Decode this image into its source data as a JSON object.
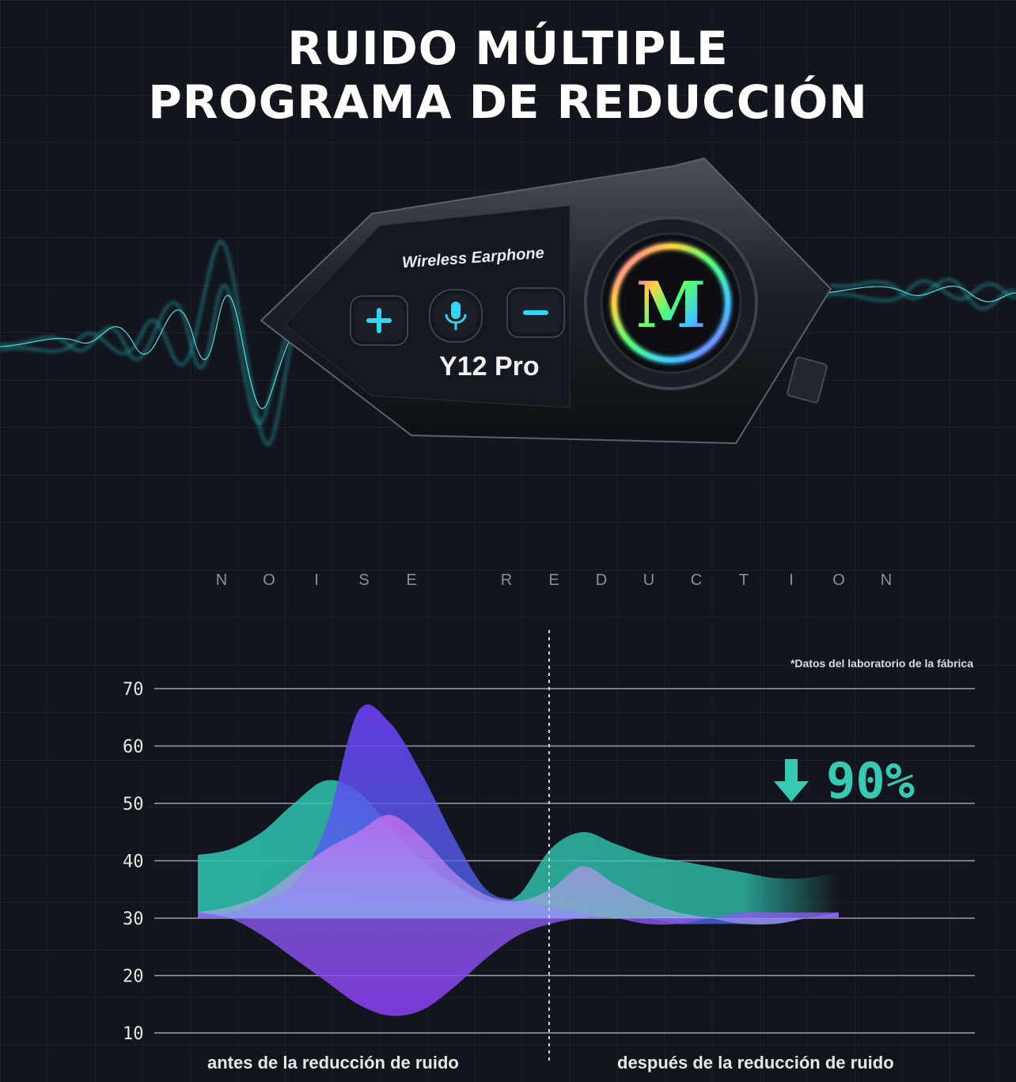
{
  "title": {
    "line1": "RUIDO MÚLTIPLE",
    "line2": "PROGRAMA DE REDUCCIÓN"
  },
  "device": {
    "label": "Wireless Earphone",
    "model": "12 Pro",
    "model_mark": "Y",
    "logo_letter": "M",
    "buttons": [
      "plus-icon",
      "microphone-icon",
      "minus-icon"
    ],
    "accent": "#33d6f2"
  },
  "noise_heading": [
    "N",
    "O",
    "I",
    "S",
    "E",
    "",
    "R",
    "E",
    "D",
    "U",
    "C",
    "T",
    "I",
    "O",
    "N"
  ],
  "footnote": "*Datos del laboratorio de la fábrica",
  "reduction": {
    "value": "90%",
    "icon": "arrow-down-icon",
    "color": "#36c9b4"
  },
  "captions": {
    "before": "antes de la reducción de ruido",
    "after": "después de la reducción de ruido"
  },
  "chart_data": {
    "type": "area",
    "title": "",
    "xlabel": "",
    "ylabel": "",
    "ylim": [
      10,
      70
    ],
    "yticks": [
      "70",
      "60",
      "50",
      "40",
      "30",
      "20",
      "10"
    ],
    "grid": true,
    "divider": "dashed vertical line between before and after",
    "x": [
      0,
      5,
      10,
      15,
      20,
      25,
      30,
      35,
      40,
      45,
      50,
      55,
      60,
      65,
      70,
      75,
      80,
      85,
      90,
      95,
      100
    ],
    "series": [
      {
        "color": "#2fc3b0",
        "values": [
          41,
          42,
          45,
          50,
          54,
          52,
          46,
          40,
          36,
          33,
          34,
          42,
          45,
          43,
          41,
          40,
          39,
          38,
          37,
          37,
          38
        ]
      },
      {
        "color": "#6a3df0",
        "values": [
          31,
          31,
          33,
          36,
          46,
          66,
          64,
          55,
          44,
          35,
          33,
          32,
          31,
          30,
          30,
          29,
          29,
          29,
          29,
          30,
          31
        ]
      },
      {
        "color": "#c46cf2",
        "values": [
          31,
          32,
          34,
          38,
          42,
          45,
          48,
          44,
          38,
          34,
          33,
          35,
          39,
          36,
          33,
          31,
          30,
          29,
          29,
          30,
          31
        ]
      },
      {
        "color": "#8a5cf0",
        "values": [
          31,
          30,
          27,
          23,
          19,
          15,
          13,
          14,
          18,
          23,
          27,
          29,
          30,
          30,
          29,
          29,
          30,
          31,
          31,
          31,
          31
        ]
      }
    ]
  }
}
